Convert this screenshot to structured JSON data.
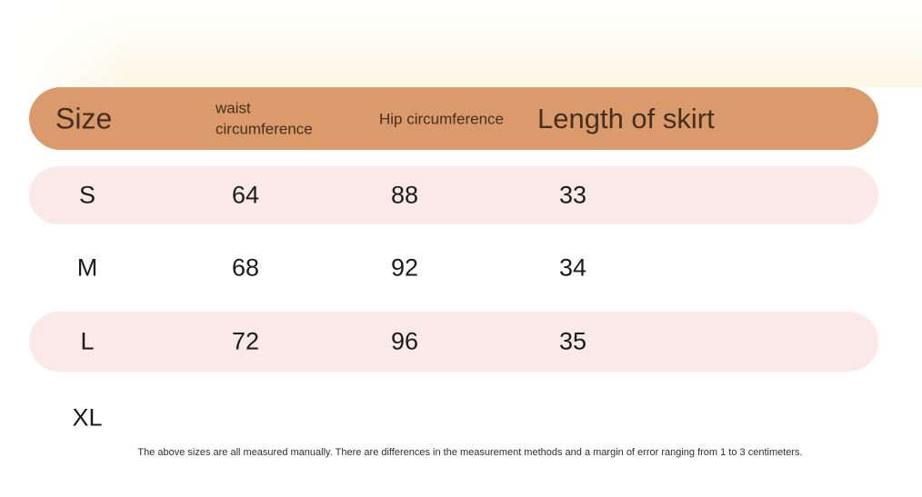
{
  "chart_data": {
    "type": "table",
    "title": "",
    "columns": [
      "Size",
      "waist circumference",
      "Hip circumference",
      "Length of skirt"
    ],
    "rows": [
      {
        "size": "S",
        "waist": "64",
        "hip": "88",
        "length": "33"
      },
      {
        "size": "M",
        "waist": "68",
        "hip": "92",
        "length": "34"
      },
      {
        "size": "L",
        "waist": "72",
        "hip": "96",
        "length": "35"
      },
      {
        "size": "XL",
        "waist": "",
        "hip": "",
        "length": ""
      }
    ],
    "layout_hints": {
      "header_style": "rounded pill bar",
      "row_striping": "odd rows pink pills (S, L), even rows white (M, XL)",
      "units": "centimeters (implied by note)"
    }
  },
  "table": {
    "columns": [
      {
        "label": "Size"
      },
      {
        "label": "waist circumference"
      },
      {
        "label": "Hip circumference"
      },
      {
        "label": "Length of skirt"
      }
    ],
    "rows": [
      {
        "size": "S",
        "waist": "64",
        "hip": "88",
        "length": "33"
      },
      {
        "size": "M",
        "waist": "68",
        "hip": "92",
        "length": "34"
      },
      {
        "size": "L",
        "waist": "72",
        "hip": "96",
        "length": "35"
      },
      {
        "size": "XL",
        "waist": "",
        "hip": "",
        "length": ""
      }
    ]
  },
  "footer": {
    "note": "The above sizes are all measured manually. There are differences in the measurement methods and a margin of error ranging from 1 to 3 centimeters."
  },
  "colors": {
    "header_bg": "#DB9A6B",
    "header_text": "#44301F",
    "row_alt_bg": "#FAE9E7",
    "value_text": "#1B1B1B",
    "note_text": "#2E2E2E",
    "backdrop_cream": "#FBF7E6"
  }
}
